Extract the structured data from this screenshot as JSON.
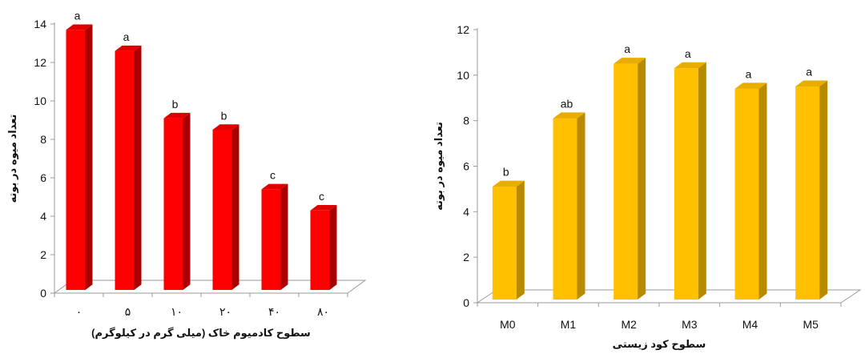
{
  "chart_data": [
    {
      "type": "bar",
      "categories": [
        "۰",
        "۵",
        "۱۰",
        "۲۰",
        "۴۰",
        "۸۰"
      ],
      "values": [
        13.7,
        12.6,
        9.1,
        8.5,
        5.4,
        4.3
      ],
      "letters": [
        "a",
        "a",
        "b",
        "b",
        "c",
        "c"
      ],
      "ylim": [
        0,
        14
      ],
      "yticks": [
        0,
        2,
        4,
        6,
        8,
        10,
        12,
        14
      ],
      "ylabel": "تعداد میوه در بوته",
      "xlabel": "سطوح کادمیوم خاک (میلی گرم در کیلوگرم)",
      "colors": {
        "front": "#ff0000",
        "side": "#a80000",
        "top": "#e00000"
      }
    },
    {
      "type": "bar",
      "categories": [
        "M0",
        "M1",
        "M2",
        "M3",
        "M4",
        "M5"
      ],
      "values": [
        5.1,
        8.1,
        10.5,
        10.3,
        9.4,
        9.5
      ],
      "letters": [
        "b",
        "ab",
        "a",
        "a",
        "a",
        "a"
      ],
      "ylim": [
        0,
        12
      ],
      "yticks": [
        0,
        2,
        4,
        6,
        8,
        10,
        12
      ],
      "ylabel": "تعداد میوه در بوته",
      "xlabel": "سطوح کود زیستی",
      "colors": {
        "front": "#ffc000",
        "side": "#b88a00",
        "top": "#e8ad00"
      }
    }
  ]
}
